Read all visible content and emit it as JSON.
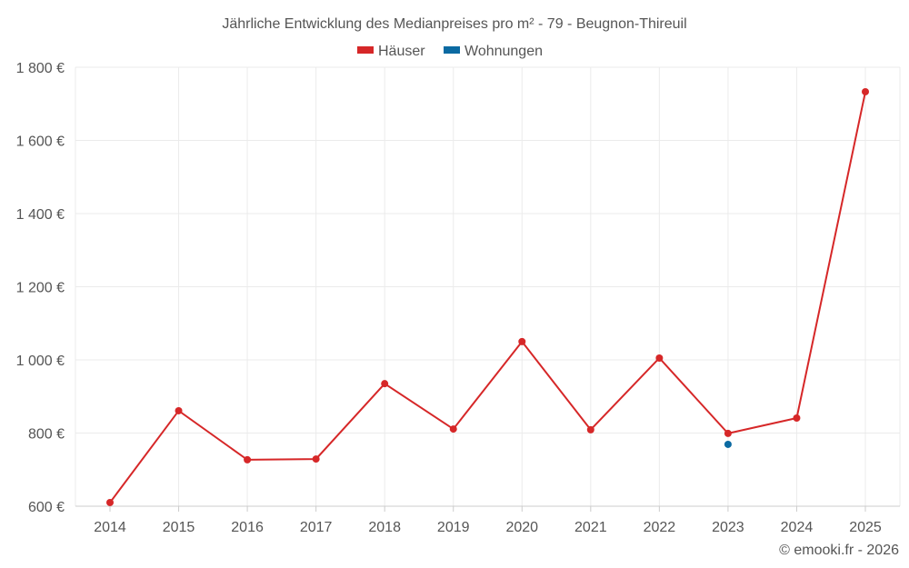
{
  "chart_data": {
    "type": "line",
    "title": "Jährliche Entwicklung des Medianpreises pro m² - 79 - Beugnon-Thireuil",
    "categories": [
      "2014",
      "2015",
      "2016",
      "2017",
      "2018",
      "2019",
      "2020",
      "2021",
      "2022",
      "2023",
      "2024",
      "2025"
    ],
    "series": [
      {
        "name": "Häuser",
        "color": "#d62728",
        "values": [
          610,
          861,
          727,
          729,
          935,
          811,
          1050,
          809,
          1005,
          799,
          841,
          1733
        ]
      },
      {
        "name": "Wohnungen",
        "color": "#0b6aa2",
        "values": [
          null,
          null,
          null,
          null,
          null,
          null,
          null,
          null,
          null,
          769,
          null,
          null
        ]
      }
    ],
    "ylim": [
      600,
      1800
    ],
    "yticks": [
      600,
      800,
      1000,
      1200,
      1400,
      1600,
      1800
    ],
    "ytick_labels": [
      "600 €",
      "800 €",
      "1 000 €",
      "1 200 €",
      "1 400 €",
      "1 600 €",
      "1 800 €"
    ],
    "xlabel": "",
    "ylabel": "",
    "grid": true,
    "legend_position": "top-center"
  },
  "credit": "© emooki.fr - 2026"
}
